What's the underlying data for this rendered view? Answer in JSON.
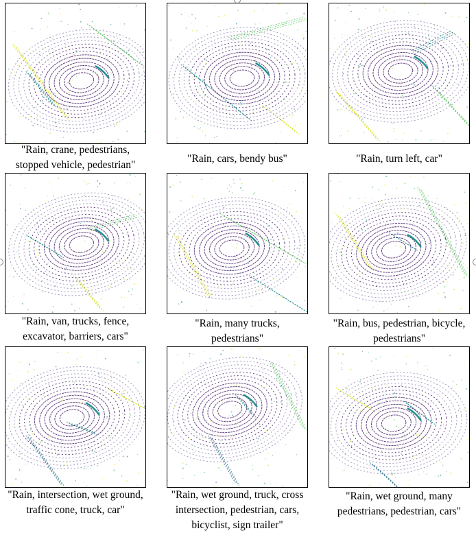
{
  "figure": {
    "panels": [
      {
        "caption_lines": [
          "\"Rain, crane, pedestrians,",
          "stopped vehicle, pedestrian\""
        ]
      },
      {
        "caption_lines": [
          "\"Rain, cars, bendy bus\""
        ]
      },
      {
        "caption_lines": [
          "\"Rain, turn left, car\""
        ]
      },
      {
        "caption_lines": [
          "\"Rain, van, trucks, fence,",
          "excavator, barriers, cars\""
        ]
      },
      {
        "caption_lines": [
          "\"Rain, many trucks,",
          "pedestrians\""
        ]
      },
      {
        "caption_lines": [
          "\"Rain, bus, pedestrian, bicycle,",
          "pedestrians\""
        ]
      },
      {
        "caption_lines": [
          "\"Rain, intersection, wet ground,",
          "traffic cone, truck, car\""
        ]
      },
      {
        "caption_lines": [
          "\"Rain, wet ground, truck, cross",
          "intersection, pedestrian, cars,",
          "bicyclist, sign trailer\""
        ]
      },
      {
        "caption_lines": [
          "\"Rain, wet ground, many",
          "pedestrians, pedestrian, cars\""
        ]
      }
    ],
    "colors": {
      "ring": "#4b1f6f",
      "ring_light": "#5a3a8a",
      "mid": "#2c728e",
      "teal": "#21918c",
      "green": "#5ec962",
      "yellow": "#d8e219"
    }
  }
}
